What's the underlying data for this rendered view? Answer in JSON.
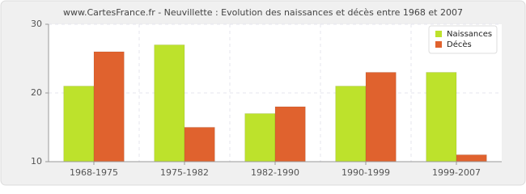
{
  "chart_data": {
    "type": "bar",
    "title": "www.CartesFrance.fr - Neuvillette : Evolution des naissances et décès entre 1968 et 2007",
    "categories": [
      "1968-1975",
      "1975-1982",
      "1982-1990",
      "1990-1999",
      "1999-2007"
    ],
    "series": [
      {
        "name": "Naissances",
        "color": "#bde22c",
        "values": [
          21,
          27,
          17,
          21,
          23
        ]
      },
      {
        "name": "Décès",
        "color": "#e0622e",
        "values": [
          26,
          15,
          18,
          23,
          11
        ]
      }
    ],
    "ylim": [
      10,
      30
    ],
    "yticks": [
      10,
      20,
      30
    ],
    "grid": true,
    "legend": "top-right"
  }
}
